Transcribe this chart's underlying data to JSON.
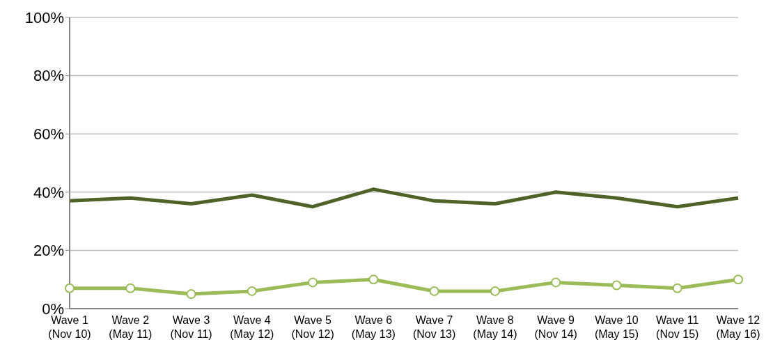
{
  "chart_data": {
    "type": "line",
    "categories": [
      "Wave 1\n(Nov 10)",
      "Wave 2\n(May 11)",
      "Wave 3\n(Nov 11)",
      "Wave 4\n(May 12)",
      "Wave 5\n(Nov 12)",
      "Wave 6\n(May 13)",
      "Wave 7\n(Nov 13)",
      "Wave 8\n(May 14)",
      "Wave 9\n(Nov 14)",
      "Wave 10\n(May 15)",
      "Wave 11\n(Nov 15)",
      "Wave 12\n(May 16)"
    ],
    "series": [
      {
        "color": "#4f6228",
        "marker": "none",
        "values": [
          37,
          38,
          36,
          39,
          35,
          41,
          37,
          36,
          40,
          38,
          35,
          38
        ]
      },
      {
        "color": "#9bbb59",
        "marker": "circle",
        "values": [
          7,
          7,
          5,
          6,
          9,
          10,
          6,
          6,
          9,
          8,
          7,
          10
        ]
      }
    ],
    "ylim": [
      0,
      100
    ],
    "yticks": [
      {
        "value": 0,
        "label": "0%"
      },
      {
        "value": 20,
        "label": "20%"
      },
      {
        "value": 40,
        "label": "40%"
      },
      {
        "value": 60,
        "label": "60%"
      },
      {
        "value": 80,
        "label": "80%"
      },
      {
        "value": 100,
        "label": "100%"
      }
    ],
    "grid": "y",
    "legend": false
  }
}
